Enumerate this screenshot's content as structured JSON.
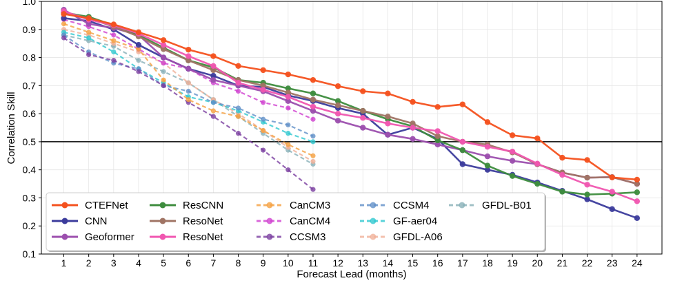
{
  "chart_data": {
    "type": "line",
    "xlabel": "Forecast Lead (months)",
    "ylabel": "Correlation Skill",
    "xlim": [
      0.1,
      25.0
    ],
    "ylim": [
      0.1,
      1.0
    ],
    "xticks": [
      1,
      2,
      3,
      4,
      5,
      6,
      7,
      8,
      9,
      10,
      11,
      12,
      13,
      14,
      15,
      16,
      17,
      18,
      19,
      20,
      21,
      22,
      23,
      24
    ],
    "yticks": [
      0.1,
      0.2,
      0.3,
      0.4,
      0.5,
      0.6,
      0.7,
      0.8,
      0.9,
      1.0
    ],
    "ytick_labels": [
      "0.1",
      "0.2",
      "0.3",
      "0.4",
      "0.5",
      "0.6",
      "0.7",
      "0.8",
      "0.9",
      "1.0"
    ],
    "reference_line": 0.5,
    "grid": true,
    "legend_position": "lower-left",
    "series": [
      {
        "name": "CTEFNet",
        "color": "#f4511e",
        "dashed": false,
        "x": [
          1,
          2,
          3,
          4,
          5,
          6,
          7,
          8,
          9,
          10,
          11,
          12,
          13,
          14,
          15,
          16,
          17,
          18,
          19,
          20,
          21,
          22,
          23,
          24
        ],
        "y": [
          0.955,
          0.94,
          0.918,
          0.89,
          0.862,
          0.828,
          0.805,
          0.77,
          0.755,
          0.74,
          0.72,
          0.698,
          0.68,
          0.672,
          0.642,
          0.624,
          0.633,
          0.57,
          0.523,
          0.512,
          0.443,
          0.435,
          0.373,
          0.365
        ]
      },
      {
        "name": "CNN",
        "color": "#3c3c9c",
        "dashed": false,
        "x": [
          1,
          2,
          3,
          4,
          5,
          6,
          7,
          8,
          9,
          10,
          11,
          12,
          13,
          14,
          15,
          16,
          17,
          18,
          19,
          20,
          21,
          22,
          23,
          24
        ],
        "y": [
          0.94,
          0.93,
          0.9,
          0.845,
          0.8,
          0.76,
          0.735,
          0.7,
          0.695,
          0.665,
          0.645,
          0.62,
          0.6,
          0.525,
          0.55,
          0.51,
          0.42,
          0.4,
          0.382,
          0.355,
          0.325,
          0.295,
          0.26,
          0.228
        ]
      },
      {
        "name": "Geoformer",
        "color": "#9c4fae",
        "dashed": false,
        "x": [
          1,
          2,
          3,
          4,
          5,
          6,
          7,
          8,
          9,
          10,
          11,
          12,
          13,
          14,
          15,
          16,
          17,
          18,
          19,
          20,
          21,
          22,
          23,
          24
        ],
        "y": [
          0.97,
          0.92,
          0.905,
          0.88,
          0.8,
          0.76,
          0.72,
          0.7,
          0.68,
          0.645,
          0.61,
          0.575,
          0.55,
          0.525,
          0.51,
          0.49,
          0.47,
          0.448,
          0.432,
          0.42,
          0.39,
          0.372,
          0.374,
          0.35
        ]
      },
      {
        "name": "ResCNN",
        "color": "#3d8c3d",
        "dashed": false,
        "x": [
          1,
          2,
          3,
          4,
          5,
          6,
          7,
          8,
          9,
          10,
          11,
          12,
          13,
          14,
          15,
          16,
          17,
          18,
          19,
          20,
          21,
          22,
          23,
          24
        ],
        "y": [
          0.96,
          0.945,
          0.915,
          0.88,
          0.835,
          0.79,
          0.765,
          0.72,
          0.71,
          0.69,
          0.672,
          0.645,
          0.61,
          0.58,
          0.555,
          0.505,
          0.47,
          0.415,
          0.378,
          0.35,
          0.322,
          0.312,
          0.315,
          0.32
        ]
      },
      {
        "name": "ResoNet",
        "color": "#a07464",
        "dashed": false,
        "x": [
          1,
          2,
          3,
          4,
          5,
          6,
          7,
          8,
          9,
          10,
          11,
          12,
          13,
          14,
          15,
          16,
          17,
          18,
          19,
          20,
          21,
          22,
          23,
          24
        ],
        "y": [
          0.96,
          0.94,
          0.91,
          0.875,
          0.83,
          0.79,
          0.755,
          0.72,
          0.7,
          0.675,
          0.65,
          0.63,
          0.61,
          0.59,
          0.565,
          0.52,
          0.5,
          0.49,
          0.462,
          0.42,
          0.39,
          0.372,
          0.374,
          0.35
        ]
      },
      {
        "name": "ResoNet",
        "color": "#f056b0",
        "dashed": false,
        "x": [
          1,
          2,
          3,
          4,
          5,
          6,
          7,
          8,
          9,
          10,
          11,
          12,
          13,
          14,
          15,
          16,
          17,
          18,
          19,
          20,
          21,
          22,
          23,
          24
        ],
        "y": [
          0.965,
          0.935,
          0.915,
          0.885,
          0.845,
          0.805,
          0.77,
          0.71,
          0.685,
          0.66,
          0.625,
          0.6,
          0.585,
          0.565,
          0.55,
          0.538,
          0.5,
          0.482,
          0.465,
          0.422,
          0.382,
          0.347,
          0.322,
          0.288
        ]
      },
      {
        "name": "CanCM3",
        "color": "#f5a040",
        "dashed": true,
        "x": [
          1,
          2,
          3,
          4,
          5,
          6,
          7,
          8,
          9,
          10,
          11
        ],
        "y": [
          0.92,
          0.89,
          0.86,
          0.83,
          0.72,
          0.65,
          0.61,
          0.59,
          0.54,
          0.49,
          0.45
        ]
      },
      {
        "name": "CanCM4",
        "color": "#d040d0",
        "dashed": true,
        "x": [
          1,
          2,
          3,
          4,
          5,
          6,
          7,
          8,
          9,
          10,
          11
        ],
        "y": [
          0.935,
          0.91,
          0.88,
          0.83,
          0.78,
          0.76,
          0.71,
          0.68,
          0.64,
          0.62,
          0.58
        ]
      },
      {
        "name": "CCSM3",
        "color": "#7a3fa0",
        "dashed": true,
        "x": [
          1,
          2,
          3,
          4,
          5,
          6,
          7,
          8,
          9,
          10,
          11
        ],
        "y": [
          0.87,
          0.81,
          0.79,
          0.75,
          0.7,
          0.64,
          0.59,
          0.53,
          0.47,
          0.4,
          0.33
        ]
      },
      {
        "name": "CCSM4",
        "color": "#6090c8",
        "dashed": true,
        "x": [
          1,
          2,
          3,
          4,
          5,
          6,
          7,
          8,
          9,
          10,
          11
        ],
        "y": [
          0.88,
          0.82,
          0.78,
          0.76,
          0.7,
          0.68,
          0.64,
          0.62,
          0.58,
          0.56,
          0.52
        ]
      },
      {
        "name": "GF-aer04",
        "color": "#30c8d0",
        "dashed": true,
        "x": [
          1,
          2,
          3,
          4,
          5,
          6,
          7,
          8,
          9,
          10,
          11
        ],
        "y": [
          0.89,
          0.87,
          0.82,
          0.76,
          0.71,
          0.66,
          0.64,
          0.61,
          0.57,
          0.53,
          0.5
        ]
      },
      {
        "name": "GFDL-A06",
        "color": "#f0b098",
        "dashed": true,
        "x": [
          1,
          2,
          3,
          4,
          5,
          6,
          7,
          8,
          9,
          10,
          11
        ],
        "y": [
          0.9,
          0.88,
          0.85,
          0.82,
          0.78,
          0.71,
          0.65,
          0.6,
          0.54,
          0.48,
          0.43
        ]
      },
      {
        "name": "GFDL-B01",
        "color": "#88b0b8",
        "dashed": true,
        "x": [
          1,
          2,
          3,
          4,
          5,
          6,
          7,
          8,
          9,
          10,
          11
        ],
        "y": [
          0.88,
          0.86,
          0.84,
          0.79,
          0.75,
          0.71,
          0.65,
          0.59,
          0.53,
          0.47,
          0.42
        ]
      }
    ]
  }
}
